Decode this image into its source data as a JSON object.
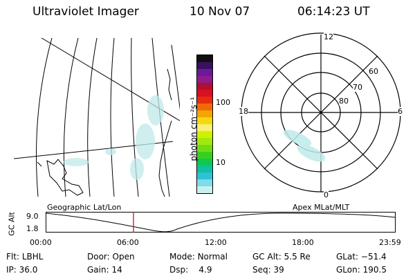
{
  "header": {
    "instrument": "Ultraviolet Imager",
    "date": "10 Nov 07",
    "time": "06:14:23 UT"
  },
  "colorbar": {
    "unit_label": "photon cm⁻²s⁻¹",
    "ticks": [
      "100",
      "10"
    ],
    "colors": [
      "#101010",
      "#3a1060",
      "#6a1a9a",
      "#8e1c8e",
      "#b01030",
      "#d81020",
      "#e82a10",
      "#f06a08",
      "#f4a404",
      "#f4d810",
      "#f8f070",
      "#d0f000",
      "#a0e810",
      "#70dc18",
      "#38d020",
      "#10c850",
      "#10c0a0",
      "#30c0d8",
      "#80dce8",
      "#c8f0f0"
    ]
  },
  "polar": {
    "mlt_labels": {
      "top": "12",
      "left": "18",
      "right": "6",
      "bottom": "0"
    },
    "lat_labels": [
      "60",
      "70",
      "80"
    ]
  },
  "timeline": {
    "left_label": "Geographic Lat/Lon",
    "right_label": "Apex MLat/MLT",
    "y_axis_title": "GC Alt",
    "y_ticks": [
      "9.0",
      "1.8"
    ],
    "x_ticks": [
      "00:00",
      "06:00",
      "12:00",
      "18:00",
      "23:59"
    ],
    "current_marker_time": "06:14",
    "marker_color": "#d01010"
  },
  "info": {
    "row1": [
      {
        "label": "Flt:",
        "value": "LBHL"
      },
      {
        "label": "Door:",
        "value": "Open"
      },
      {
        "label": "Mode:",
        "value": "Normal"
      },
      {
        "label": "GC Alt:",
        "value": "5.5 Re"
      },
      {
        "label": "GLat:",
        "value": "−51.4"
      }
    ],
    "row2": [
      {
        "label": "IP:",
        "value": "36.0"
      },
      {
        "label": "Gain:",
        "value": "14"
      },
      {
        "label": "Dsp:",
        "value": "4.9"
      },
      {
        "label": "Seq:",
        "value": "39"
      },
      {
        "label": "GLon:",
        "value": "190.5"
      }
    ]
  }
}
